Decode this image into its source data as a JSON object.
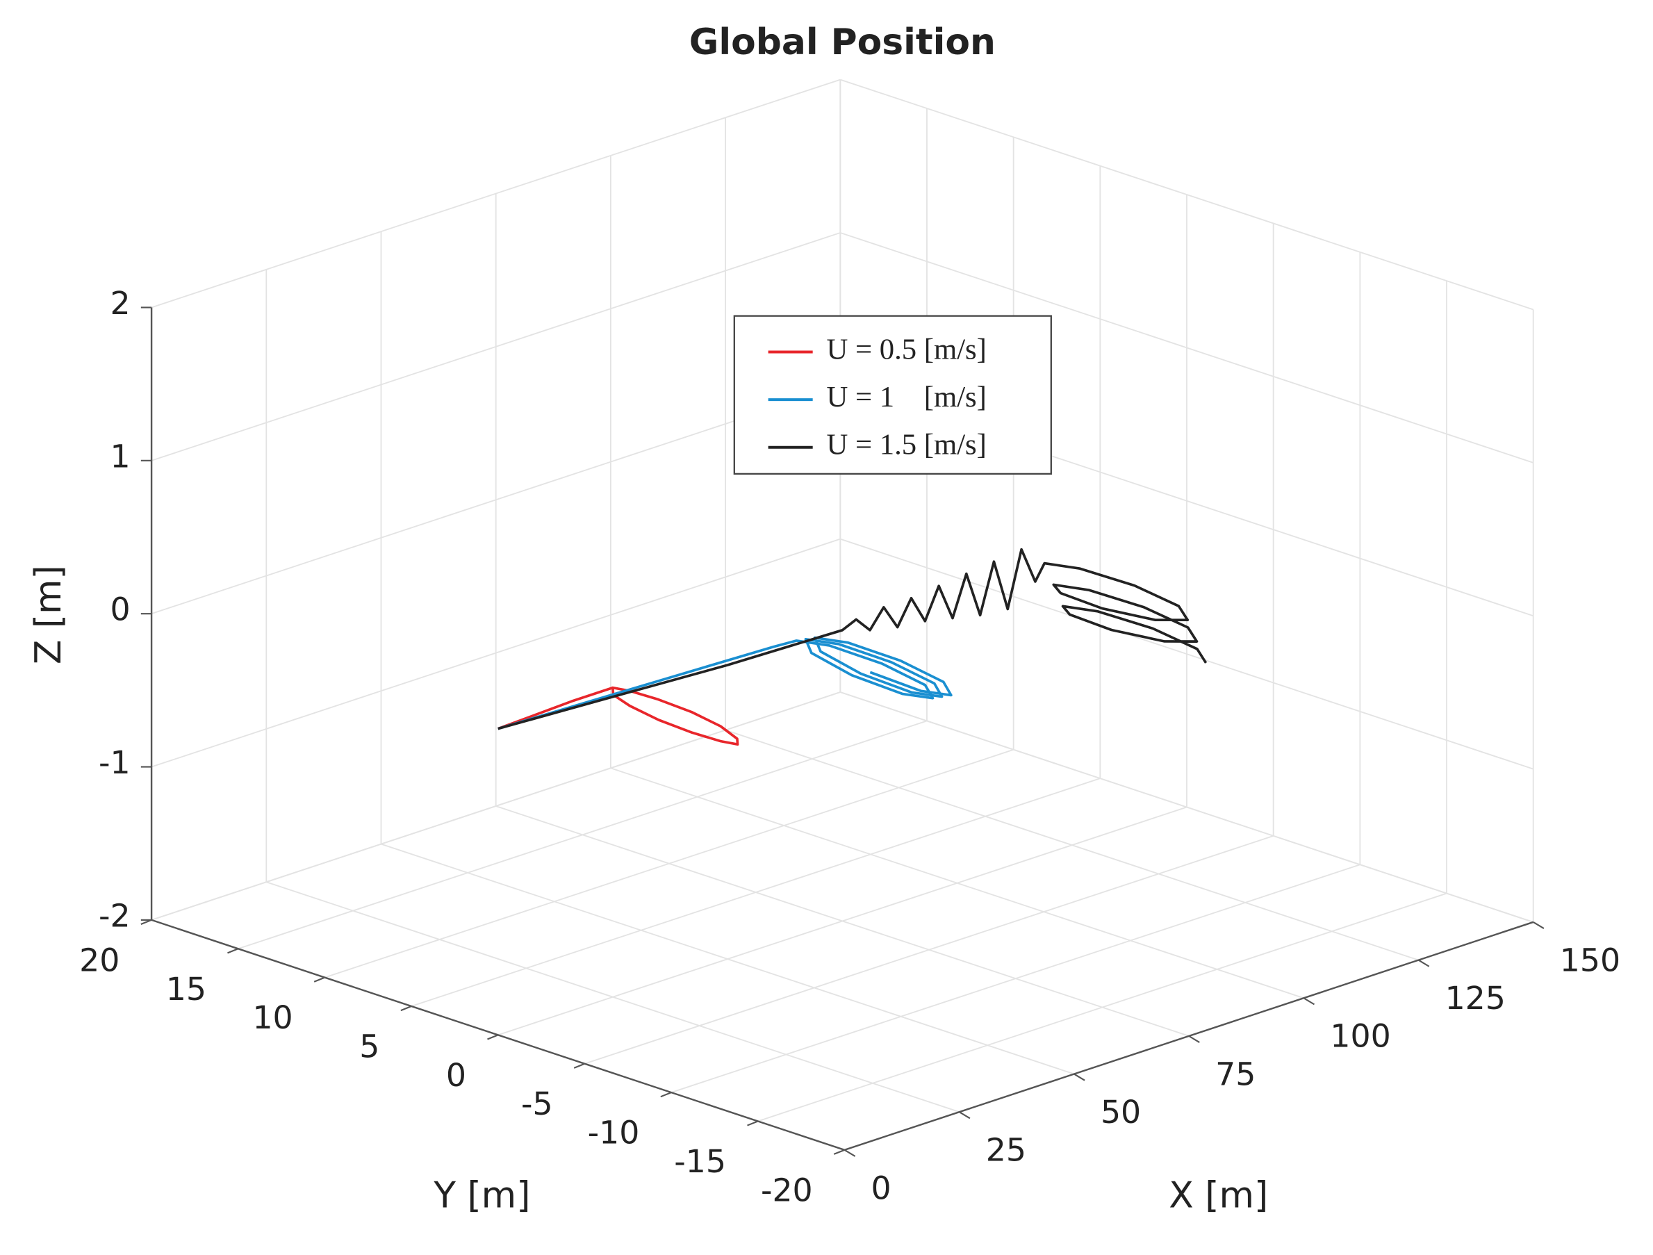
{
  "chart_data": {
    "type": "line3d",
    "title": "Global Position",
    "xlabel": "X [m]",
    "ylabel": "Y [m]",
    "zlabel": "Z [m]",
    "xlim": [
      0,
      150
    ],
    "ylim": [
      -20,
      20
    ],
    "zlim": [
      -2,
      2
    ],
    "xticks": [
      0,
      25,
      50,
      75,
      100,
      125,
      150
    ],
    "yticks": [
      -20,
      -15,
      -10,
      -5,
      0,
      5,
      10,
      15,
      20
    ],
    "zticks": [
      -2,
      -1,
      0,
      1,
      2
    ],
    "grid": true,
    "legend": "top-center",
    "series": [
      {
        "name": "U = 0.5 [m/s]",
        "color": "#e8262b",
        "x": [
          0,
          8,
          16,
          25,
          26.8,
          28.1,
          28.6,
          28.1,
          26.8,
          25,
          23.2,
          21.9,
          21.4,
          21.9,
          23.2,
          25
        ],
        "y": [
          0,
          0,
          0,
          0,
          -0.5,
          -1.8,
          -3.6,
          -5.4,
          -6.7,
          -7.2,
          -6.7,
          -5.4,
          -3.6,
          -1.8,
          -0.5,
          0
        ],
        "z": [
          0,
          0.01,
          0.02,
          0.02,
          0,
          -0.02,
          -0.04,
          -0.06,
          -0.08,
          -0.08,
          -0.06,
          -0.04,
          -0.02,
          0,
          0.01,
          0.02
        ]
      },
      {
        "name": "U = 1    [m/s]",
        "color": "#1a8fd1",
        "x": [
          0,
          20,
          40,
          60,
          65,
          68.0,
          69.3,
          68.5,
          66,
          63.6,
          62.7,
          64.1,
          67,
          70.0,
          71.3,
          70.5,
          68,
          65.6,
          64.7,
          66.1,
          69,
          72.0,
          73.3,
          72.5,
          70,
          67.6,
          66.7
        ],
        "y": [
          0,
          0,
          0,
          0,
          0,
          -1.1,
          -3.8,
          -6.5,
          -7.6,
          -6.5,
          -3.8,
          -1.1,
          0,
          -1.1,
          -3.8,
          -6.5,
          -7.6,
          -6.5,
          -3.8,
          -1.1,
          0,
          -1.1,
          -3.8,
          -6.5,
          -7.6,
          -6.5,
          -3.8
        ],
        "z": [
          0,
          -0.02,
          -0.04,
          -0.06,
          -0.07,
          -0.09,
          -0.12,
          -0.15,
          -0.17,
          -0.16,
          -0.13,
          -0.1,
          -0.08,
          -0.1,
          -0.13,
          -0.16,
          -0.18,
          -0.17,
          -0.14,
          -0.11,
          -0.09,
          -0.11,
          -0.14,
          -0.17,
          -0.19,
          -0.18,
          -0.15
        ]
      },
      {
        "name": "U = 1.5 [m/s]",
        "color": "#222222",
        "x": [
          0,
          25,
          50,
          75,
          78,
          81,
          84,
          87,
          90,
          93,
          96,
          99,
          102,
          105,
          108,
          111,
          114,
          117,
          119,
          122.1,
          123.5,
          122.6,
          120,
          117.5,
          116.5,
          118,
          121,
          124.1,
          125.5,
          124.6,
          122,
          119.5,
          118.5,
          120,
          123,
          126.1,
          127.5,
          126.6,
          124
        ],
        "y": [
          0,
          0,
          0,
          0,
          0,
          0,
          0,
          0,
          0,
          0,
          0,
          0,
          0,
          0,
          0,
          0,
          0,
          0,
          0,
          -1.2,
          -4,
          -6.8,
          -8,
          -6.8,
          -4,
          -1.2,
          0,
          -1.2,
          -4,
          -6.8,
          -8,
          -6.8,
          -4,
          -1.2,
          0,
          -1.2,
          -4,
          -6.8,
          -8
        ],
        "z": [
          0,
          -0.04,
          -0.08,
          -0.1,
          -0.06,
          -0.16,
          -0.04,
          -0.2,
          -0.04,
          -0.22,
          -0.02,
          -0.26,
          0.0,
          -0.3,
          0.02,
          -0.32,
          0.04,
          -0.2,
          -0.1,
          -0.12,
          -0.14,
          -0.16,
          -0.18,
          -0.2,
          -0.22,
          -0.24,
          -0.26,
          -0.28,
          -0.3,
          -0.32,
          -0.34,
          -0.36,
          -0.38,
          -0.4,
          -0.42,
          -0.44,
          -0.46,
          -0.48,
          -0.5
        ]
      }
    ]
  }
}
